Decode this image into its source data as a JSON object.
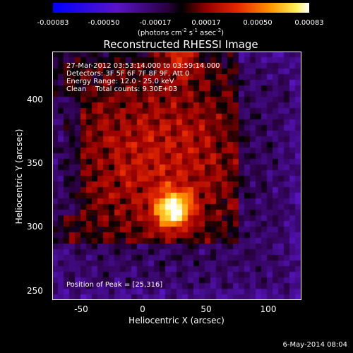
{
  "colorbar": {
    "ticks": [
      "-0.00083",
      "-0.00050",
      "-0.00017",
      "0.00017",
      "0.00050",
      "0.00083"
    ],
    "units_prefix": "(photons cm",
    "units_sup1": "-2",
    "units_mid": " s",
    "units_sup2": "-1",
    "units_mid2": " asec",
    "units_sup3": "-2",
    "units_suffix": ")"
  },
  "title": "Reconstructed RHESSI Image",
  "info": {
    "time_range": "27-Mar-2012 03:53:14.000 to 03:59:14.000",
    "detectors": "Detectors: 3F 5F 6F 7F 8F 9F, Att 0",
    "energy_range": "Energy Range: 12.0 - 25.0 keV",
    "clean": "Clean    Total counts: 9.30E+03",
    "peak": "Position of Peak = [25,316]"
  },
  "axes": {
    "x_label": "Heliocentric X (arcsec)",
    "y_label": "Heliocentric Y (arcsec)",
    "x_ticks": [
      "-50",
      "0",
      "50",
      "100"
    ],
    "y_ticks": [
      "400",
      "350",
      "300",
      "250"
    ],
    "x_range": [
      -70,
      125
    ],
    "y_range": [
      245,
      440
    ]
  },
  "peak": {
    "x": 25,
    "y": 316
  },
  "footer": {
    "date": "6-May-2014 08:04"
  }
}
